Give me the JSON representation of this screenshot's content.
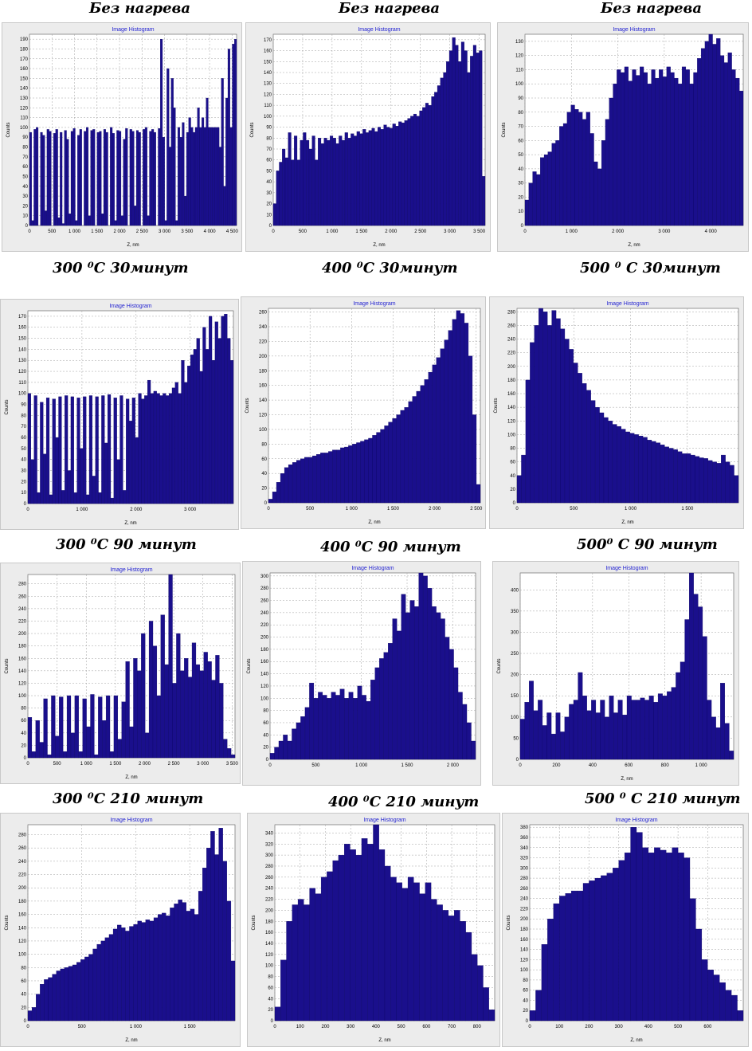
{
  "captions": [
    {
      "text": "Без нагрева"
    },
    {
      "text": "Без нагрева"
    },
    {
      "text": "Без нагрева"
    },
    {
      "text": "300 ⁰C   30минут"
    },
    {
      "text": "400 ⁰C   30минут"
    },
    {
      "text": "500 ⁰ C  30минут"
    },
    {
      "text": "300 ⁰C 90  минут"
    },
    {
      "text": "400 ⁰C  90  минут"
    },
    {
      "text": "500⁰ C  90  минут"
    },
    {
      "text": "300 ⁰C    210  минут"
    },
    {
      "text": "400 ⁰C 210  минут"
    },
    {
      "text": "500 ⁰ C 210  минут"
    }
  ],
  "colors": {
    "bar": "#1a0f8c",
    "bar_edge": "#0a0560",
    "plot_bg": "#ffffff",
    "panel_bg": "#ececec",
    "grid": "#a0a0a0",
    "title": "#1f1fd0"
  },
  "chart_data": [
    {
      "type": "bar",
      "title": "Image Histogram",
      "xlabel": "Z, nm",
      "ylabel": "Counts",
      "xlim": [
        0,
        4600
      ],
      "ylim": [
        0,
        195
      ],
      "xticks": [
        0,
        500,
        1000,
        1500,
        2000,
        2500,
        3000,
        3500,
        4000,
        4500
      ],
      "xtick_labels": [
        "0",
        "500",
        "1 000",
        "1 500",
        "2 000",
        "2 500",
        "3 000",
        "3 500",
        "4 000",
        "4 500"
      ],
      "yticks": [
        0,
        10,
        20,
        30,
        40,
        50,
        60,
        70,
        80,
        90,
        100,
        110,
        120,
        130,
        140,
        150,
        160,
        170,
        180,
        190
      ],
      "values": [
        95,
        5,
        98,
        100,
        0,
        95,
        92,
        15,
        98,
        96,
        0,
        94,
        98,
        8,
        95,
        2,
        97,
        88,
        12,
        96,
        99,
        5,
        92,
        98,
        0,
        96,
        100,
        10,
        97,
        98,
        0,
        95,
        96,
        12,
        98,
        95,
        0,
        100,
        94,
        5,
        97,
        96,
        10,
        88,
        99,
        0,
        98,
        96,
        20,
        97,
        95,
        0,
        98,
        100,
        10,
        96,
        98,
        95,
        0,
        99,
        190,
        90,
        5,
        160,
        80,
        150,
        120,
        5,
        100,
        90,
        105,
        30,
        95,
        110,
        100,
        95,
        100,
        120,
        100,
        110,
        100,
        130,
        100,
        100,
        100,
        100,
        100,
        80,
        150,
        40,
        130,
        180,
        100,
        185,
        190
      ]
    },
    {
      "type": "bar",
      "title": "Image Histogram",
      "xlabel": "Z, nm",
      "ylabel": "Counts",
      "xlim": [
        0,
        3600
      ],
      "ylim": [
        0,
        175
      ],
      "xticks": [
        0,
        500,
        1000,
        1500,
        2000,
        2500,
        3000,
        3500
      ],
      "xtick_labels": [
        "0",
        "500",
        "1 000",
        "1 500",
        "2 000",
        "2 500",
        "3 000",
        "3 500"
      ],
      "yticks": [
        0,
        10,
        20,
        30,
        40,
        50,
        60,
        70,
        80,
        90,
        100,
        110,
        120,
        130,
        140,
        150,
        160,
        170
      ],
      "values": [
        20,
        50,
        58,
        70,
        62,
        85,
        60,
        82,
        60,
        78,
        85,
        78,
        70,
        82,
        60,
        80,
        75,
        80,
        78,
        82,
        80,
        75,
        82,
        78,
        85,
        80,
        84,
        82,
        86,
        84,
        88,
        85,
        87,
        89,
        86,
        90,
        88,
        92,
        90,
        89,
        93,
        91,
        95,
        94,
        96,
        98,
        100,
        102,
        100,
        105,
        108,
        112,
        110,
        118,
        122,
        128,
        135,
        140,
        150,
        160,
        172,
        165,
        150,
        168,
        160,
        140,
        155,
        165,
        158,
        160,
        45
      ]
    },
    {
      "type": "bar",
      "title": "Image Histogram",
      "xlabel": "Z, nm",
      "ylabel": "Counts",
      "xlim": [
        0,
        4700
      ],
      "ylim": [
        0,
        135
      ],
      "xticks": [
        0,
        1000,
        2000,
        3000,
        4000
      ],
      "xtick_labels": [
        "0",
        "1 000",
        "2 000",
        "3 000",
        "4 000"
      ],
      "yticks": [
        0,
        10,
        20,
        30,
        40,
        50,
        60,
        70,
        80,
        90,
        100,
        110,
        120,
        130
      ],
      "values": [
        18,
        30,
        38,
        36,
        48,
        50,
        52,
        58,
        60,
        70,
        72,
        80,
        85,
        82,
        80,
        75,
        80,
        65,
        45,
        40,
        60,
        75,
        90,
        100,
        110,
        108,
        112,
        102,
        110,
        106,
        112,
        108,
        100,
        110,
        104,
        110,
        105,
        112,
        108,
        104,
        100,
        112,
        110,
        100,
        108,
        118,
        125,
        130,
        135,
        128,
        132,
        120,
        115,
        122,
        110,
        104,
        95
      ]
    },
    {
      "type": "bar",
      "title": "Image Histogram",
      "xlabel": "Z, nm",
      "ylabel": "Counts",
      "xlim": [
        0,
        3800
      ],
      "ylim": [
        0,
        175
      ],
      "xticks": [
        0,
        1000,
        2000,
        3000
      ],
      "xtick_labels": [
        "0",
        "1 000",
        "2 000",
        "3 000"
      ],
      "yticks": [
        0,
        10,
        20,
        30,
        40,
        50,
        60,
        70,
        80,
        90,
        100,
        110,
        120,
        130,
        140,
        150,
        160,
        170
      ],
      "values": [
        100,
        40,
        98,
        10,
        92,
        45,
        96,
        8,
        95,
        60,
        97,
        12,
        98,
        30,
        97,
        10,
        96,
        50,
        97,
        8,
        98,
        25,
        97,
        10,
        98,
        55,
        99,
        5,
        96,
        40,
        98,
        12,
        95,
        75,
        96,
        60,
        100,
        95,
        98,
        112,
        100,
        102,
        100,
        98,
        100,
        98,
        100,
        105,
        110,
        100,
        130,
        110,
        125,
        135,
        140,
        150,
        120,
        160,
        140,
        170,
        130,
        165,
        150,
        170,
        172,
        150,
        130
      ]
    },
    {
      "type": "bar",
      "title": "Image Histogram",
      "xlabel": "Z, nm",
      "ylabel": "Counts",
      "xlim": [
        0,
        2550
      ],
      "ylim": [
        0,
        265
      ],
      "xticks": [
        0,
        500,
        1000,
        1500,
        2000,
        2500
      ],
      "xtick_labels": [
        "0",
        "500",
        "1 000",
        "1 500",
        "2 000",
        "2 500"
      ],
      "yticks": [
        0,
        20,
        40,
        60,
        80,
        100,
        120,
        140,
        160,
        180,
        200,
        220,
        240,
        260
      ],
      "values": [
        5,
        15,
        28,
        40,
        48,
        52,
        55,
        58,
        60,
        62,
        62,
        64,
        66,
        68,
        68,
        70,
        72,
        72,
        75,
        76,
        78,
        80,
        82,
        84,
        86,
        88,
        92,
        96,
        100,
        105,
        110,
        115,
        120,
        126,
        130,
        138,
        145,
        152,
        160,
        168,
        178,
        188,
        198,
        210,
        222,
        235,
        250,
        262,
        258,
        245,
        200,
        120,
        25
      ]
    },
    {
      "type": "bar",
      "title": "Image Histogram",
      "xlabel": "Z, nm",
      "ylabel": "Counts",
      "xlim": [
        0,
        1950
      ],
      "ylim": [
        0,
        285
      ],
      "xticks": [
        0,
        500,
        1000,
        1500
      ],
      "xtick_labels": [
        "0",
        "500",
        "1 000",
        "1 500"
      ],
      "yticks": [
        0,
        20,
        40,
        60,
        80,
        100,
        120,
        140,
        160,
        180,
        200,
        220,
        240,
        260,
        280
      ],
      "values": [
        40,
        70,
        180,
        235,
        260,
        290,
        280,
        260,
        282,
        270,
        255,
        240,
        225,
        205,
        190,
        175,
        165,
        150,
        140,
        132,
        125,
        120,
        115,
        112,
        108,
        104,
        102,
        100,
        98,
        96,
        92,
        90,
        88,
        85,
        82,
        80,
        78,
        75,
        72,
        72,
        70,
        68,
        66,
        65,
        62,
        60,
        58,
        70,
        60,
        55,
        40
      ]
    },
    {
      "type": "bar",
      "title": "Image Histogram",
      "xlabel": "Z, nm",
      "ylabel": "Counts",
      "xlim": [
        0,
        3550
      ],
      "ylim": [
        0,
        295
      ],
      "xticks": [
        0,
        500,
        1000,
        1500,
        2000,
        2500,
        3000,
        3500
      ],
      "xtick_labels": [
        "0",
        "500",
        "1 000",
        "1 500",
        "2 000",
        "2 500",
        "3 000",
        "3 500"
      ],
      "yticks": [
        0,
        20,
        40,
        60,
        80,
        100,
        120,
        140,
        160,
        180,
        200,
        220,
        240,
        260,
        280
      ],
      "values": [
        65,
        10,
        60,
        25,
        95,
        5,
        100,
        35,
        98,
        10,
        100,
        40,
        100,
        10,
        95,
        50,
        102,
        5,
        98,
        60,
        100,
        10,
        100,
        30,
        90,
        155,
        50,
        160,
        140,
        200,
        40,
        220,
        180,
        100,
        230,
        150,
        300,
        120,
        200,
        140,
        160,
        130,
        185,
        150,
        140,
        170,
        155,
        125,
        165,
        120,
        30,
        15,
        5
      ]
    },
    {
      "type": "bar",
      "title": "Image Histogram",
      "xlabel": "",
      "ylabel": "Counts",
      "xlim": [
        0,
        2250
      ],
      "ylim": [
        0,
        305
      ],
      "xticks": [
        0,
        500,
        1000,
        1500,
        2000
      ],
      "xtick_labels": [
        "0",
        "500",
        "1 000",
        "1 500",
        "2 000"
      ],
      "yticks": [
        0,
        20,
        40,
        60,
        80,
        100,
        120,
        140,
        160,
        180,
        200,
        220,
        240,
        260,
        280,
        300
      ],
      "values": [
        10,
        20,
        30,
        40,
        30,
        50,
        60,
        70,
        85,
        125,
        100,
        110,
        105,
        100,
        110,
        105,
        115,
        100,
        110,
        100,
        120,
        105,
        95,
        130,
        150,
        165,
        175,
        190,
        230,
        210,
        270,
        240,
        260,
        250,
        305,
        300,
        280,
        250,
        240,
        230,
        200,
        180,
        150,
        110,
        90,
        60,
        30
      ]
    },
    {
      "type": "bar",
      "title": "Image Histogram",
      "xlabel": "Z, nm",
      "ylabel": "Counts",
      "xlim": [
        0,
        1180
      ],
      "ylim": [
        0,
        440
      ],
      "xticks": [
        0,
        200,
        400,
        600,
        800,
        1000
      ],
      "xtick_labels": [
        "0",
        "200",
        "400",
        "600",
        "800",
        "1 000"
      ],
      "yticks": [
        0,
        50,
        100,
        150,
        200,
        250,
        300,
        350,
        400
      ],
      "values": [
        95,
        135,
        185,
        115,
        140,
        80,
        110,
        60,
        110,
        65,
        100,
        130,
        140,
        205,
        150,
        115,
        140,
        110,
        140,
        100,
        150,
        110,
        140,
        105,
        150,
        140,
        140,
        145,
        140,
        150,
        135,
        155,
        150,
        160,
        170,
        205,
        230,
        330,
        440,
        390,
        360,
        290,
        140,
        100,
        75,
        180,
        85,
        20
      ]
    },
    {
      "type": "bar",
      "title": "Image Histogram",
      "xlabel": "Z, nm",
      "ylabel": "Counts",
      "xlim": [
        0,
        1920
      ],
      "ylim": [
        0,
        295
      ],
      "xticks": [
        0,
        500,
        1000,
        1500
      ],
      "xtick_labels": [
        "0",
        "500",
        "1 000",
        "1 500"
      ],
      "yticks": [
        0,
        20,
        40,
        60,
        80,
        100,
        120,
        140,
        160,
        180,
        200,
        220,
        240,
        260,
        280
      ],
      "values": [
        15,
        20,
        40,
        55,
        62,
        65,
        70,
        75,
        78,
        80,
        82,
        84,
        88,
        92,
        96,
        100,
        108,
        115,
        120,
        125,
        130,
        138,
        144,
        140,
        135,
        142,
        145,
        150,
        148,
        152,
        150,
        155,
        160,
        162,
        158,
        170,
        176,
        182,
        178,
        165,
        168,
        160,
        195,
        230,
        260,
        285,
        250,
        290,
        240,
        180,
        90
      ]
    },
    {
      "type": "bar",
      "title": "Image Histogram",
      "xlabel": "Z, nm",
      "ylabel": "Counts",
      "xlim": [
        0,
        870
      ],
      "ylim": [
        0,
        355
      ],
      "xticks": [
        0,
        100,
        200,
        300,
        400,
        500,
        600,
        700,
        800
      ],
      "xtick_labels": [
        "0",
        "100",
        "200",
        "300",
        "400",
        "500",
        "600",
        "700",
        "800"
      ],
      "yticks": [
        0,
        20,
        40,
        60,
        80,
        100,
        120,
        140,
        160,
        180,
        200,
        220,
        240,
        260,
        280,
        300,
        320,
        340
      ],
      "values": [
        25,
        110,
        180,
        210,
        220,
        210,
        240,
        230,
        260,
        270,
        290,
        300,
        320,
        310,
        300,
        330,
        320,
        355,
        310,
        280,
        260,
        250,
        240,
        260,
        250,
        230,
        250,
        220,
        210,
        200,
        190,
        200,
        180,
        160,
        120,
        100,
        60,
        20
      ]
    },
    {
      "type": "bar",
      "title": "Image Histogram",
      "xlabel": "Z, nm",
      "ylabel": "Counts",
      "xlim": [
        0,
        720
      ],
      "ylim": [
        0,
        385
      ],
      "xticks": [
        0,
        100,
        200,
        300,
        400,
        500,
        600
      ],
      "xtick_labels": [
        "0",
        "100",
        "200",
        "300",
        "400",
        "500",
        "600"
      ],
      "yticks": [
        0,
        20,
        40,
        60,
        80,
        100,
        120,
        140,
        160,
        180,
        200,
        220,
        240,
        260,
        280,
        300,
        320,
        340,
        360,
        380
      ],
      "values": [
        20,
        60,
        150,
        200,
        230,
        245,
        250,
        255,
        255,
        270,
        275,
        280,
        285,
        290,
        300,
        315,
        330,
        380,
        370,
        340,
        330,
        340,
        335,
        330,
        340,
        330,
        320,
        240,
        180,
        120,
        100,
        90,
        75,
        60,
        50,
        20
      ]
    }
  ]
}
